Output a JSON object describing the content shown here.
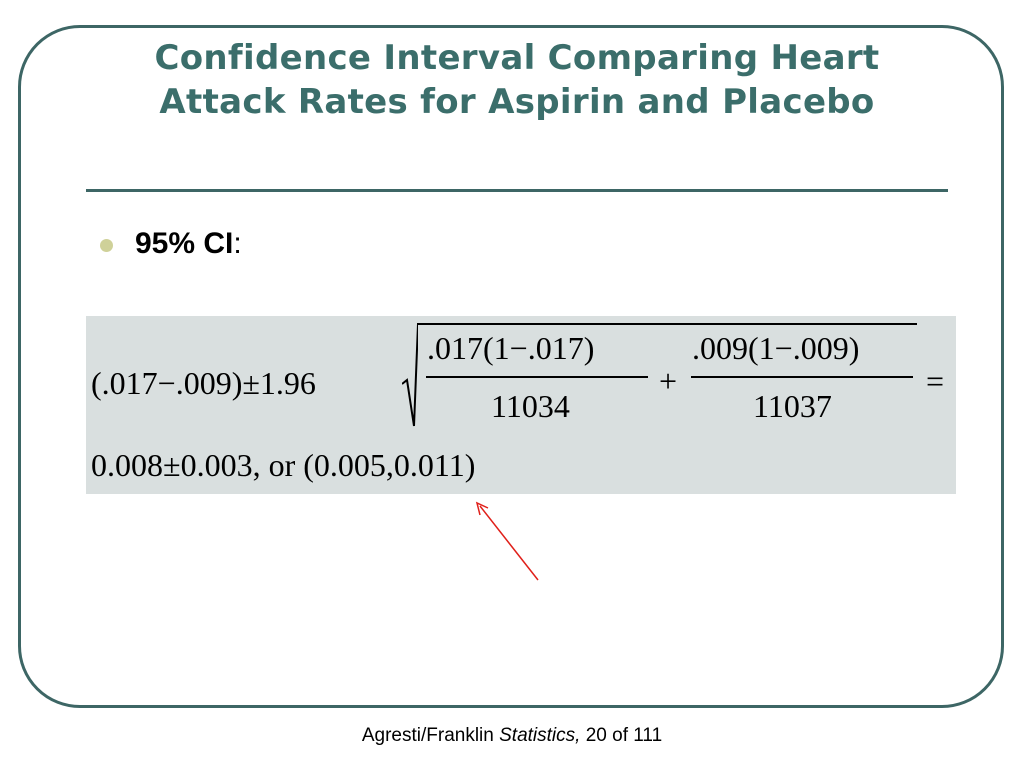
{
  "slide": {
    "title": "Confidence Interval Comparing Heart Attack Rates for Aspirin and Placebo",
    "bullet": {
      "label": "95% CI",
      "suffix": ":"
    },
    "formula": {
      "lhs": "(.017−.009)±1.96",
      "numerator_1": ".017(1−.017)",
      "denominator_1": "11034",
      "plus": "+",
      "numerator_2": ".009(1−.009)",
      "denominator_2": "11037",
      "equals": "=",
      "result": "0.008±0.003, or (0.005,0.011)"
    },
    "footer": {
      "authors": "Agresti/Franklin",
      "book": "Statistics,",
      "page": "20 of 111"
    },
    "colors": {
      "title": "#3b6e6b",
      "frame": "#3d6665",
      "formula_background": "#d9dfdf",
      "bullet": "#cfd199",
      "arrow": "#e0201a"
    }
  }
}
